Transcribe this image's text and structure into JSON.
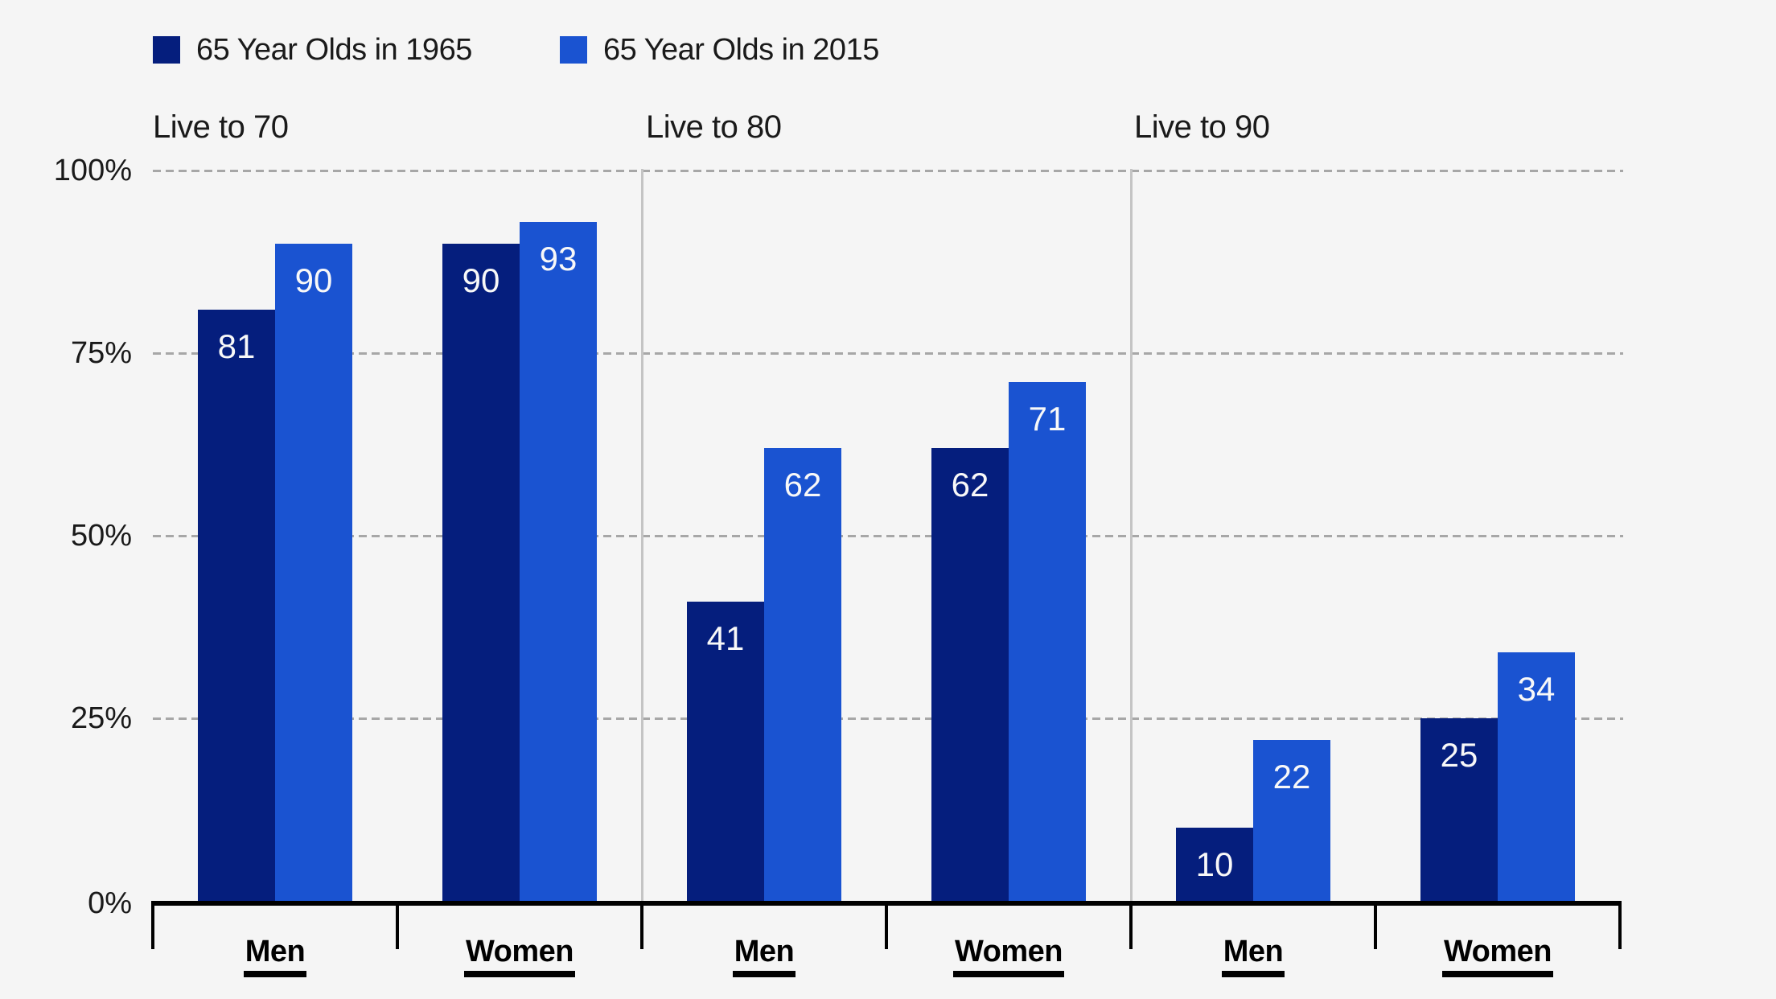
{
  "legend": {
    "items": [
      {
        "label": "65 Year Olds in 1965",
        "series_key": "1965"
      },
      {
        "label": "65 Year Olds in 2015",
        "series_key": "2015"
      }
    ]
  },
  "colors": {
    "background": "#f5f5f5",
    "series_1965": "#051e7d",
    "series_2015": "#1a53d1",
    "gridline": "#a7a7a7",
    "panel_separator": "#c4c4c4",
    "axis": "#000000",
    "text": "#1a1a1a",
    "bar_value_text": "#f8f8f8"
  },
  "chart_data": {
    "type": "bar",
    "title": "",
    "unit": "percent",
    "ylim": [
      0,
      100
    ],
    "yticks": [
      0,
      25,
      50,
      75,
      100
    ],
    "ytick_labels": [
      "0%",
      "25%",
      "50%",
      "75%",
      "100%"
    ],
    "grid": "horizontal dashed lines at 25%, 50%, 75%, 100%",
    "legend_position": "top-left",
    "panels": [
      {
        "title": "Live to 70",
        "categories": [
          "Men",
          "Women"
        ],
        "series": [
          {
            "name": "65 Year Olds in 1965",
            "values": [
              81,
              90
            ]
          },
          {
            "name": "65 Year Olds in 2015",
            "values": [
              90,
              93
            ]
          }
        ]
      },
      {
        "title": "Live to 80",
        "categories": [
          "Men",
          "Women"
        ],
        "series": [
          {
            "name": "65 Year Olds in 1965",
            "values": [
              41,
              62
            ]
          },
          {
            "name": "65 Year Olds in 2015",
            "values": [
              62,
              71
            ]
          }
        ]
      },
      {
        "title": "Live to 90",
        "categories": [
          "Men",
          "Women"
        ],
        "series": [
          {
            "name": "65 Year Olds in 1965",
            "values": [
              10,
              25
            ]
          },
          {
            "name": "65 Year Olds in 2015",
            "values": [
              22,
              34
            ]
          }
        ]
      }
    ]
  }
}
